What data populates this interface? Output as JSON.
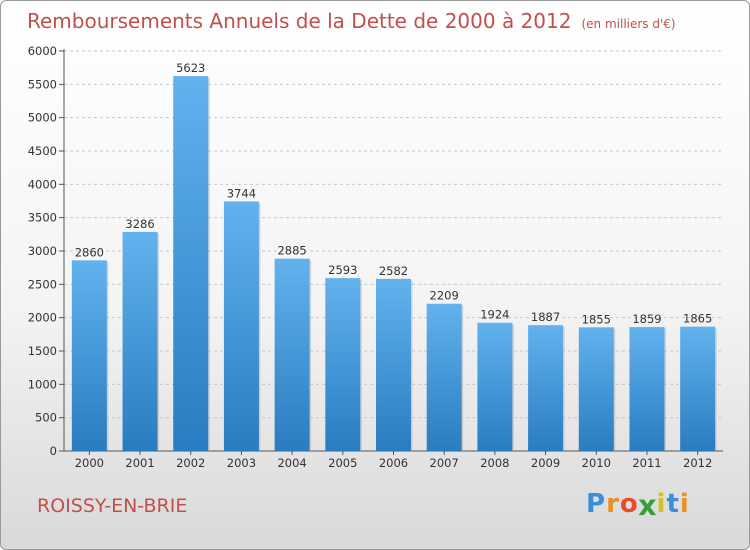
{
  "header": {
    "title": "Remboursements Annuels de la Dette de 2000 à 2012",
    "subtitle": "(en milliers d'€)"
  },
  "footer": {
    "city": "ROISSY-EN-BRIE",
    "logo": "Proxiti"
  },
  "colors": {
    "title": "#c0504d",
    "bar_top": "#62b2ee",
    "bar_bottom": "#2a7cc0"
  },
  "chart_data": {
    "type": "bar",
    "title": "Remboursements Annuels de la Dette de 2000 à 2012",
    "subtitle": "(en milliers d'€)",
    "categories": [
      "2000",
      "2001",
      "2002",
      "2003",
      "2004",
      "2005",
      "2006",
      "2007",
      "2008",
      "2009",
      "2010",
      "2011",
      "2012"
    ],
    "values": [
      2860,
      3286,
      5623,
      3744,
      2885,
      2593,
      2582,
      2209,
      1924,
      1887,
      1855,
      1859,
      1865
    ],
    "data_labels": [
      "2860",
      "3286",
      "5623",
      "3744",
      "2885",
      "2593",
      "2582",
      "2209",
      "1924",
      "1887",
      "1855",
      "1859",
      "1865"
    ],
    "yticks": [
      "0",
      "500",
      "1000",
      "1500",
      "2000",
      "2500",
      "3000",
      "3500",
      "4000",
      "4500",
      "5000",
      "5500",
      "6000"
    ],
    "ylim": [
      0,
      6000
    ],
    "grid": true
  }
}
